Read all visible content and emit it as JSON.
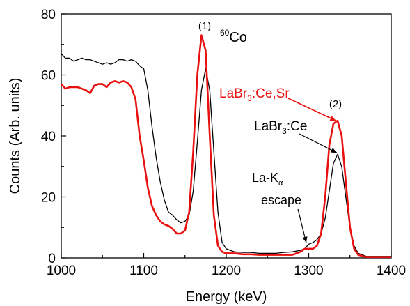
{
  "chart_data": {
    "type": "line",
    "xlabel": "Energy (keV)",
    "ylabel": "Counts (Arb. units)",
    "xlim": [
      1000,
      1400
    ],
    "ylim": [
      0,
      80
    ],
    "xticks": [
      "1000",
      "1100",
      "1200",
      "1300",
      "1400"
    ],
    "yticks": [
      "0",
      "20",
      "40",
      "60",
      "80"
    ],
    "grid": false,
    "series": [
      {
        "name": "LaBr3:Ce",
        "color": "#000000",
        "x": [
          1000,
          1005,
          1010,
          1015,
          1020,
          1025,
          1030,
          1035,
          1040,
          1045,
          1050,
          1055,
          1060,
          1065,
          1070,
          1075,
          1080,
          1085,
          1090,
          1095,
          1100,
          1105,
          1110,
          1115,
          1120,
          1125,
          1130,
          1135,
          1140,
          1145,
          1150,
          1155,
          1160,
          1165,
          1170,
          1175,
          1180,
          1185,
          1190,
          1195,
          1200,
          1205,
          1210,
          1220,
          1230,
          1240,
          1250,
          1260,
          1270,
          1280,
          1290,
          1295,
          1300,
          1305,
          1310,
          1315,
          1320,
          1325,
          1330,
          1335,
          1340,
          1345,
          1350,
          1355,
          1360,
          1370,
          1380,
          1390,
          1400
        ],
        "y": [
          67,
          65.5,
          65.5,
          64.5,
          65,
          65.5,
          65,
          65,
          64.5,
          64,
          63.5,
          64,
          63.5,
          64,
          65,
          65,
          64.5,
          65,
          64.5,
          63,
          62,
          55,
          43,
          33,
          25,
          19,
          15,
          14,
          12.5,
          11.5,
          12,
          14,
          22,
          38,
          55,
          62,
          55,
          35,
          15,
          5,
          3,
          2.5,
          2,
          1.8,
          1.8,
          1.5,
          1.5,
          1.5,
          1.8,
          2,
          2.5,
          3,
          4.5,
          5,
          6,
          8,
          13,
          22,
          31,
          34,
          30,
          20,
          10,
          4,
          1.5,
          0.5,
          0.5,
          0.5,
          0.5
        ]
      },
      {
        "name": "LaBr3:Ce,Sr",
        "color": "#e8110f",
        "x": [
          1000,
          1005,
          1010,
          1015,
          1020,
          1025,
          1030,
          1035,
          1040,
          1045,
          1050,
          1055,
          1060,
          1065,
          1070,
          1075,
          1080,
          1085,
          1090,
          1095,
          1100,
          1105,
          1110,
          1115,
          1120,
          1125,
          1130,
          1135,
          1140,
          1145,
          1150,
          1155,
          1160,
          1165,
          1170,
          1175,
          1180,
          1185,
          1190,
          1195,
          1200,
          1205,
          1210,
          1220,
          1230,
          1240,
          1250,
          1260,
          1270,
          1280,
          1290,
          1295,
          1300,
          1305,
          1310,
          1315,
          1320,
          1325,
          1330,
          1335,
          1340,
          1345,
          1350,
          1355,
          1360,
          1370,
          1380,
          1390,
          1400
        ],
        "y": [
          57,
          55.5,
          56,
          56,
          56,
          55.5,
          55,
          54,
          56.5,
          57,
          57,
          56,
          57.5,
          58,
          57.5,
          58,
          57.5,
          56,
          52,
          40,
          32,
          23,
          17,
          14,
          12,
          11,
          10.5,
          9.5,
          8,
          8,
          9,
          15,
          35,
          60,
          73,
          68,
          40,
          14,
          4,
          2,
          1.5,
          1.5,
          1.5,
          1.2,
          1.2,
          1,
          1,
          1,
          1,
          1,
          2,
          3,
          3,
          3,
          4,
          8,
          20,
          37,
          44,
          45,
          40,
          25,
          10,
          3,
          1,
          0.3,
          0.3,
          0.3,
          0.3
        ]
      }
    ],
    "annotations": {
      "peak1": "(1)",
      "peak2": "(2)",
      "source_prefix": "60",
      "source_name": "Co",
      "red_label": {
        "main": "LaBr",
        "sub": "3",
        "rest": ":Ce,Sr"
      },
      "black_label": {
        "main": "LaBr",
        "sub": "3",
        "rest": ":Ce"
      },
      "escape_line1": {
        "main": "La-K",
        "sub": "α"
      },
      "escape_line2": "escape"
    }
  }
}
